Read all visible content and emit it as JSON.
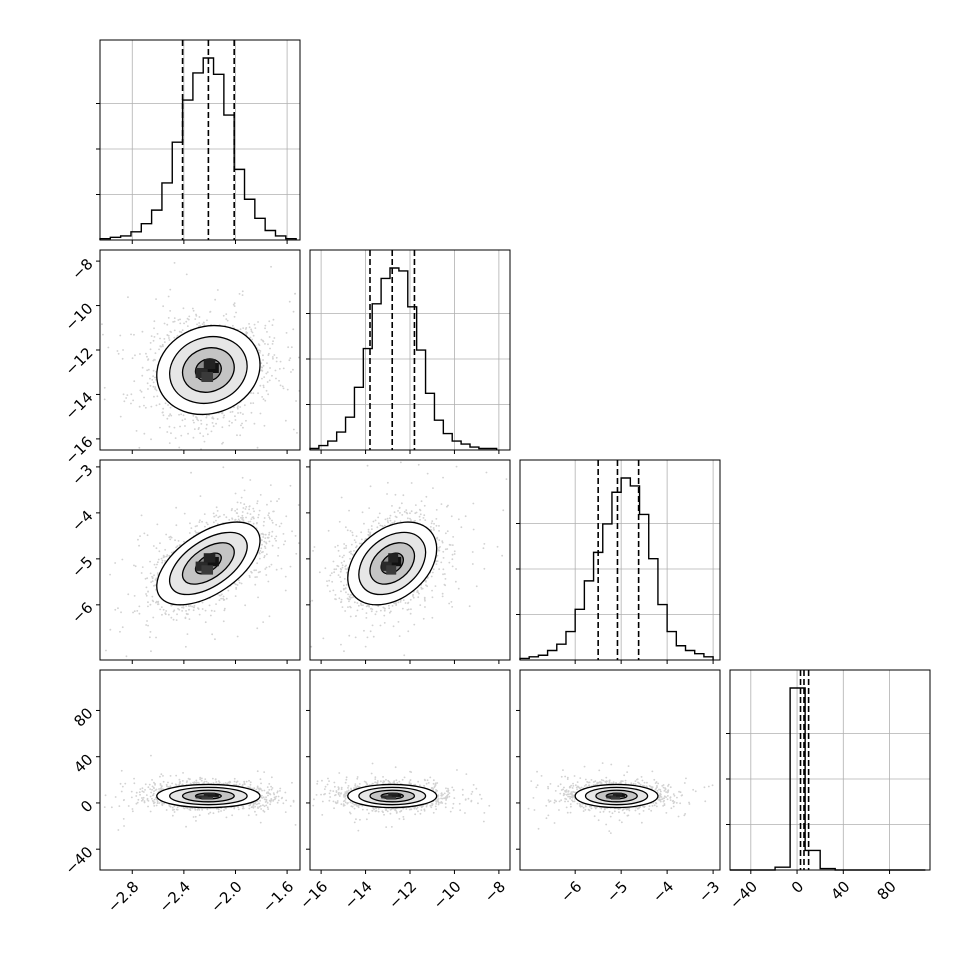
{
  "chart_data": {
    "type": "corner",
    "title": "",
    "n_params": 4,
    "params": [
      {
        "index": 0,
        "label": "",
        "range": [
          -3.05,
          -1.5
        ],
        "ticks": [
          -2.8,
          -2.4,
          -2.0,
          -1.6
        ],
        "tick_labels": [
          "−2.8",
          "−2.4",
          "−2.0",
          "−1.6"
        ],
        "quantiles": [
          -2.41,
          -2.21,
          -2.01
        ],
        "median": -2.21,
        "sigma": 0.2
      },
      {
        "index": 1,
        "label": "",
        "range": [
          -16.5,
          -7.5
        ],
        "ticks": [
          -16,
          -14,
          -12,
          -10,
          -8
        ],
        "tick_labels": [
          "−16",
          "−14",
          "−12",
          "−10",
          "−8"
        ],
        "quantiles": [
          -13.8,
          -12.8,
          -11.8
        ],
        "median": -12.8,
        "sigma": 1.0
      },
      {
        "index": 2,
        "label": "",
        "range": [
          -7.2,
          -2.85
        ],
        "ticks": [
          -6,
          -5,
          -4,
          -3
        ],
        "tick_labels": [
          "−6",
          "−5",
          "−4",
          "−3"
        ],
        "quantiles": [
          -5.5,
          -5.08,
          -4.62
        ],
        "median": -5.08,
        "sigma": 0.45
      },
      {
        "index": 3,
        "label": "",
        "range": [
          -58,
          115
        ],
        "ticks": [
          -40,
          0,
          40,
          80
        ],
        "tick_labels": [
          "−40",
          "0",
          "40",
          "80"
        ],
        "quantiles": [
          3,
          6,
          10
        ],
        "median": 6,
        "sigma": 5
      }
    ],
    "histograms": [
      {
        "param": 0,
        "bins": [
          -3.05,
          -2.97,
          -2.89,
          -2.81,
          -2.73,
          -2.65,
          -2.57,
          -2.49,
          -2.41,
          -2.33,
          -2.25,
          -2.17,
          -2.09,
          -2.01,
          -1.93,
          -1.85,
          -1.77,
          -1.69,
          -1.61,
          -1.53
        ],
        "counts": [
          1,
          2,
          3,
          6,
          12,
          22,
          42,
          72,
          103,
          123,
          134,
          122,
          92,
          52,
          30,
          16,
          7,
          3,
          1
        ]
      },
      {
        "param": 1,
        "bins": [
          -16.5,
          -16.1,
          -15.7,
          -15.3,
          -14.9,
          -14.5,
          -14.1,
          -13.7,
          -13.3,
          -12.9,
          -12.5,
          -12.1,
          -11.7,
          -11.3,
          -10.9,
          -10.5,
          -10.1,
          -9.7,
          -9.3,
          -8.9,
          -8.5,
          -8.1
        ],
        "counts": [
          1,
          3,
          6,
          12,
          22,
          42,
          68,
          98,
          115,
          122,
          120,
          96,
          67,
          38,
          20,
          11,
          6,
          4,
          2,
          1,
          1
        ]
      },
      {
        "param": 2,
        "bins": [
          -7.2,
          -7.0,
          -6.8,
          -6.6,
          -6.4,
          -6.2,
          -6.0,
          -5.8,
          -5.6,
          -5.4,
          -5.2,
          -5.0,
          -4.8,
          -4.6,
          -4.4,
          -4.2,
          -4.0,
          -3.8,
          -3.6,
          -3.4,
          -3.2,
          -3.0
        ],
        "counts": [
          1,
          2,
          3,
          6,
          10,
          18,
          32,
          50,
          68,
          86,
          106,
          115,
          110,
          92,
          64,
          35,
          18,
          9,
          6,
          4,
          2
        ]
      },
      {
        "param": 3,
        "bins": [
          -58,
          -45,
          -32,
          -19,
          -6,
          7,
          20,
          33,
          46,
          59,
          72,
          85,
          98,
          111
        ],
        "counts": [
          0,
          0,
          0,
          2,
          130,
          14,
          1,
          0,
          0,
          0,
          0,
          0,
          0
        ]
      }
    ],
    "pairs": [
      {
        "x_param": 0,
        "y_param": 1,
        "x_center": -2.21,
        "y_center": -12.9,
        "x_sigma": 0.2,
        "y_sigma": 1.0,
        "correlation": 0.12
      },
      {
        "x_param": 0,
        "y_param": 2,
        "x_center": -2.21,
        "y_center": -5.1,
        "x_sigma": 0.2,
        "y_sigma": 0.45,
        "correlation": 0.55
      },
      {
        "x_param": 1,
        "y_param": 2,
        "x_center": -12.8,
        "y_center": -5.1,
        "x_sigma": 1.0,
        "y_sigma": 0.45,
        "correlation": 0.35
      },
      {
        "x_param": 0,
        "y_param": 3,
        "x_center": -2.21,
        "y_center": 6,
        "x_sigma": 0.2,
        "y_sigma": 5,
        "correlation": 0.0
      },
      {
        "x_param": 1,
        "y_param": 3,
        "x_center": -12.8,
        "y_center": 6,
        "x_sigma": 1.0,
        "y_sigma": 5,
        "correlation": 0.0
      },
      {
        "x_param": 2,
        "y_param": 3,
        "x_center": -5.1,
        "y_center": 6,
        "x_sigma": 0.45,
        "y_sigma": 5,
        "correlation": 0.0
      }
    ],
    "contour_levels_sigma": [
      0.5,
      1.0,
      1.5,
      2.0
    ],
    "quantile_lines": "dashed",
    "grid": true,
    "scatter_color": "#808080",
    "line_color": "#000000"
  }
}
